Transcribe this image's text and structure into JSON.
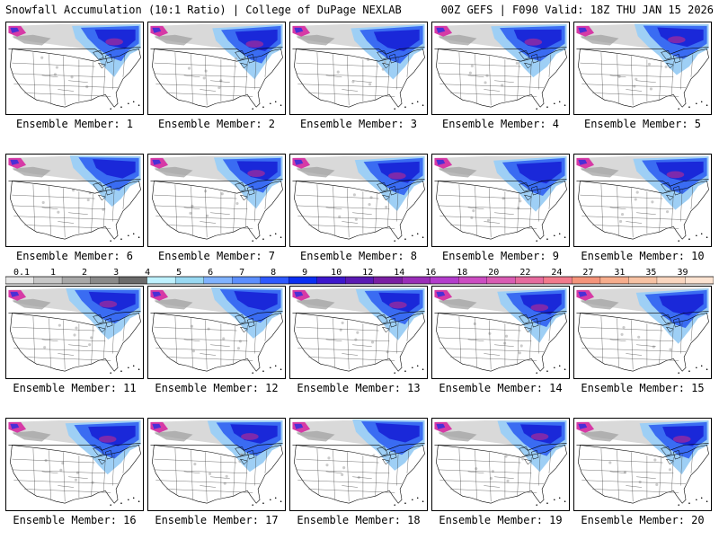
{
  "header": {
    "title_left": "Snowfall Accumulation (10:1 Ratio) | College of DuPage NEXLAB",
    "title_right": "00Z GEFS | F090 Valid: 18Z THU JAN 15 2026"
  },
  "panels": [
    {
      "label": "Ensemble Member: 1"
    },
    {
      "label": "Ensemble Member: 2"
    },
    {
      "label": "Ensemble Member: 3"
    },
    {
      "label": "Ensemble Member: 4"
    },
    {
      "label": "Ensemble Member: 5"
    },
    {
      "label": "Ensemble Member: 6"
    },
    {
      "label": "Ensemble Member: 7"
    },
    {
      "label": "Ensemble Member: 8"
    },
    {
      "label": "Ensemble Member: 9"
    },
    {
      "label": "Ensemble Member: 10"
    },
    {
      "label": "Ensemble Member: 11"
    },
    {
      "label": "Ensemble Member: 12"
    },
    {
      "label": "Ensemble Member: 13"
    },
    {
      "label": "Ensemble Member: 14"
    },
    {
      "label": "Ensemble Member: 15"
    },
    {
      "label": "Ensemble Member: 16"
    },
    {
      "label": "Ensemble Member: 17"
    },
    {
      "label": "Ensemble Member: 18"
    },
    {
      "label": "Ensemble Member: 19"
    },
    {
      "label": "Ensemble Member: 20"
    }
  ],
  "legend": {
    "labels": [
      "0.1",
      "1",
      "2",
      "3",
      "4",
      "5",
      "6",
      "7",
      "8",
      "9",
      "10",
      "12",
      "14",
      "16",
      "18",
      "20",
      "22",
      "24",
      "27",
      "31",
      "35",
      "39"
    ],
    "colors": [
      "#e6e6e6",
      "#c8c8c8",
      "#a8a8a8",
      "#8a8a8a",
      "#6b6b6b",
      "#bff2ff",
      "#99d9f2",
      "#80b3ff",
      "#5c8fff",
      "#2e59ff",
      "#0a2ef2",
      "#3d17cc",
      "#5a1ab3",
      "#7a1fa3",
      "#9a2eb8",
      "#b33dcc",
      "#cc4dc2",
      "#d95cb3",
      "#e66b9e",
      "#f27a8c",
      "#f5947a",
      "#f7ad8c",
      "#f7c2a3",
      "#fad6bf",
      "#fce3d1"
    ]
  },
  "colors": {
    "snow_light": "#9ecff5",
    "snow_mid": "#3a6cf2",
    "snow_heavy": "#1a28d9",
    "snow_max": "#8f2aa3",
    "snow_trace": "#a9a9a9"
  }
}
